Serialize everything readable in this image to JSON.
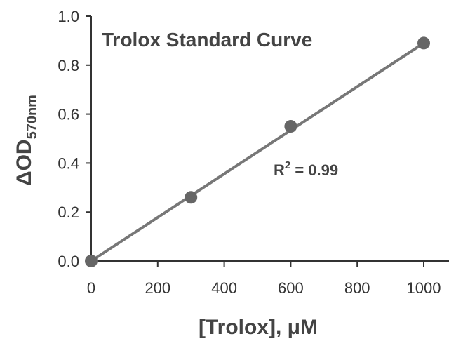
{
  "chart_data": {
    "type": "scatter",
    "title": "Trolox Standard Curve",
    "xlabel": "[Trolox], μM",
    "ylabel": {
      "main": "ΔOD",
      "sub": "570nm"
    },
    "xlim": [
      0,
      1000
    ],
    "ylim": [
      0,
      1.0
    ],
    "xticks": [
      0,
      200,
      400,
      600,
      800,
      1000
    ],
    "xtick_labels": [
      "0",
      "200",
      "400",
      "600",
      "800",
      "1000"
    ],
    "yticks": [
      0,
      0.2,
      0.4,
      0.6,
      0.8,
      1.0
    ],
    "ytick_labels": [
      "0.0",
      "0.2",
      "0.4",
      "0.6",
      "0.8",
      "1.0"
    ],
    "grid": false,
    "series": [
      {
        "x": [
          0,
          300,
          600,
          1000
        ],
        "y": [
          0.0,
          0.26,
          0.55,
          0.89
        ]
      }
    ],
    "fit_line": {
      "x": [
        0,
        1000
      ],
      "y": [
        0.0,
        0.89
      ]
    },
    "annotation": {
      "base": "R",
      "sup": "2",
      "rest": " = 0.99"
    },
    "colors": {
      "axis": "#333333",
      "line": "#777777",
      "marker": "#666666",
      "text": "#444444"
    }
  }
}
